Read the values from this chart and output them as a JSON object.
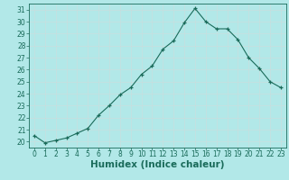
{
  "x": [
    0,
    1,
    2,
    3,
    4,
    5,
    6,
    7,
    8,
    9,
    10,
    11,
    12,
    13,
    14,
    15,
    16,
    17,
    18,
    19,
    20,
    21,
    22,
    23
  ],
  "y": [
    20.5,
    19.9,
    20.1,
    20.3,
    20.7,
    21.1,
    22.2,
    23.0,
    23.9,
    24.5,
    25.6,
    26.3,
    27.7,
    28.4,
    29.9,
    31.1,
    30.0,
    29.4,
    29.4,
    28.5,
    27.0,
    26.1,
    25.0,
    24.5
  ],
  "xlabel": "Humidex (Indice chaleur)",
  "xlim": [
    -0.5,
    23.5
  ],
  "ylim": [
    19.5,
    31.5
  ],
  "yticks": [
    20,
    21,
    22,
    23,
    24,
    25,
    26,
    27,
    28,
    29,
    30,
    31
  ],
  "xticks": [
    0,
    1,
    2,
    3,
    4,
    5,
    6,
    7,
    8,
    9,
    10,
    11,
    12,
    13,
    14,
    15,
    16,
    17,
    18,
    19,
    20,
    21,
    22,
    23
  ],
  "line_color": "#1a6b5a",
  "marker": "+",
  "bg_color": "#b2e8e8",
  "grid_color": "#c8dede",
  "axis_fontsize": 6.5,
  "tick_fontsize": 5.5,
  "xlabel_fontsize": 7.5
}
